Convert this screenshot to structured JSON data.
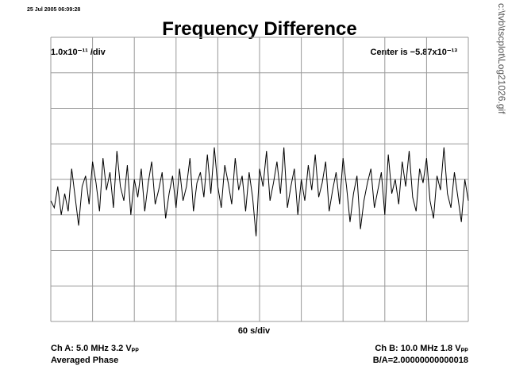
{
  "timestamp": "25 Jul 2005 06:09:28",
  "file_path": "c:\\tvb\\tscplot\\Log21026.gif",
  "chart_data": {
    "type": "line",
    "title": "Frequency Difference",
    "y_scale_label": "1.0x10⁻¹¹ /div",
    "center_label": "Center is −5.87x10⁻¹³",
    "x_scale_label": "60 s/div",
    "color": "#000000",
    "grid": true,
    "xlim": [
      0,
      600
    ],
    "xticks": [
      0,
      60,
      120,
      180,
      240,
      300,
      360,
      420,
      480,
      540,
      600
    ],
    "ylim": [
      -4,
      4
    ],
    "yticks": [
      -4,
      -3,
      -2,
      -1,
      0,
      1,
      2,
      3,
      4
    ],
    "x": [
      0,
      5,
      10,
      15,
      20,
      25,
      30,
      35,
      40,
      45,
      50,
      55,
      60,
      65,
      70,
      75,
      80,
      85,
      90,
      95,
      100,
      105,
      110,
      115,
      120,
      125,
      130,
      135,
      140,
      145,
      150,
      155,
      160,
      165,
      170,
      175,
      180,
      185,
      190,
      195,
      200,
      205,
      210,
      215,
      220,
      225,
      230,
      235,
      240,
      245,
      250,
      255,
      260,
      265,
      270,
      275,
      280,
      285,
      290,
      295,
      300,
      305,
      310,
      315,
      320,
      325,
      330,
      335,
      340,
      345,
      350,
      355,
      360,
      365,
      370,
      375,
      380,
      385,
      390,
      395,
      400,
      405,
      410,
      415,
      420,
      425,
      430,
      435,
      440,
      445,
      450,
      455,
      460,
      465,
      470,
      475,
      480,
      485,
      490,
      495,
      500,
      505,
      510,
      515,
      520,
      525,
      530,
      535,
      540,
      545,
      550,
      555,
      560,
      565,
      570,
      575,
      580,
      585,
      590,
      595,
      600
    ],
    "values": [
      -0.6,
      -0.8,
      -0.2,
      -1.0,
      -0.4,
      -0.9,
      0.3,
      -0.5,
      -1.3,
      -0.2,
      0.1,
      -0.7,
      0.5,
      -0.1,
      -0.9,
      0.6,
      -0.3,
      0.2,
      -0.8,
      0.8,
      -0.2,
      -0.6,
      0.4,
      -1.0,
      0.0,
      -0.5,
      0.3,
      -0.9,
      -0.1,
      0.5,
      -0.7,
      -0.3,
      0.2,
      -1.1,
      -0.4,
      0.1,
      -0.8,
      0.3,
      -0.6,
      -0.2,
      0.6,
      -0.9,
      -0.1,
      0.2,
      -0.5,
      0.7,
      -0.4,
      0.9,
      -0.2,
      -0.8,
      0.4,
      -0.1,
      -0.7,
      0.6,
      -0.3,
      0.1,
      -0.9,
      0.2,
      -0.5,
      -1.6,
      0.3,
      -0.2,
      0.8,
      -0.6,
      -0.1,
      0.5,
      -0.4,
      0.9,
      -0.8,
      -0.2,
      0.3,
      -1.0,
      0.0,
      -0.6,
      0.4,
      -0.3,
      0.7,
      -0.5,
      -0.1,
      0.5,
      -0.9,
      -0.3,
      0.2,
      -0.7,
      0.6,
      -0.2,
      -1.2,
      -0.4,
      0.1,
      -1.4,
      -0.6,
      -0.1,
      0.3,
      -0.8,
      -0.3,
      0.2,
      -1.0,
      0.7,
      -0.4,
      0.0,
      -0.7,
      0.5,
      -0.2,
      0.8,
      -0.5,
      -0.9,
      0.3,
      -0.1,
      0.6,
      -0.6,
      -1.1,
      0.1,
      -0.3,
      0.9,
      -0.4,
      -0.8,
      0.2,
      -0.5,
      -1.2,
      0.0,
      -0.6
    ]
  },
  "footer": {
    "channel_a": "Ch A: 5.0 MHz 3.2 Vₚₚ",
    "mode": "Averaged Phase",
    "channel_b": "Ch B: 10.0 MHz 1.8 Vₚₚ",
    "ratio": "B/A=2.00000000000018"
  }
}
